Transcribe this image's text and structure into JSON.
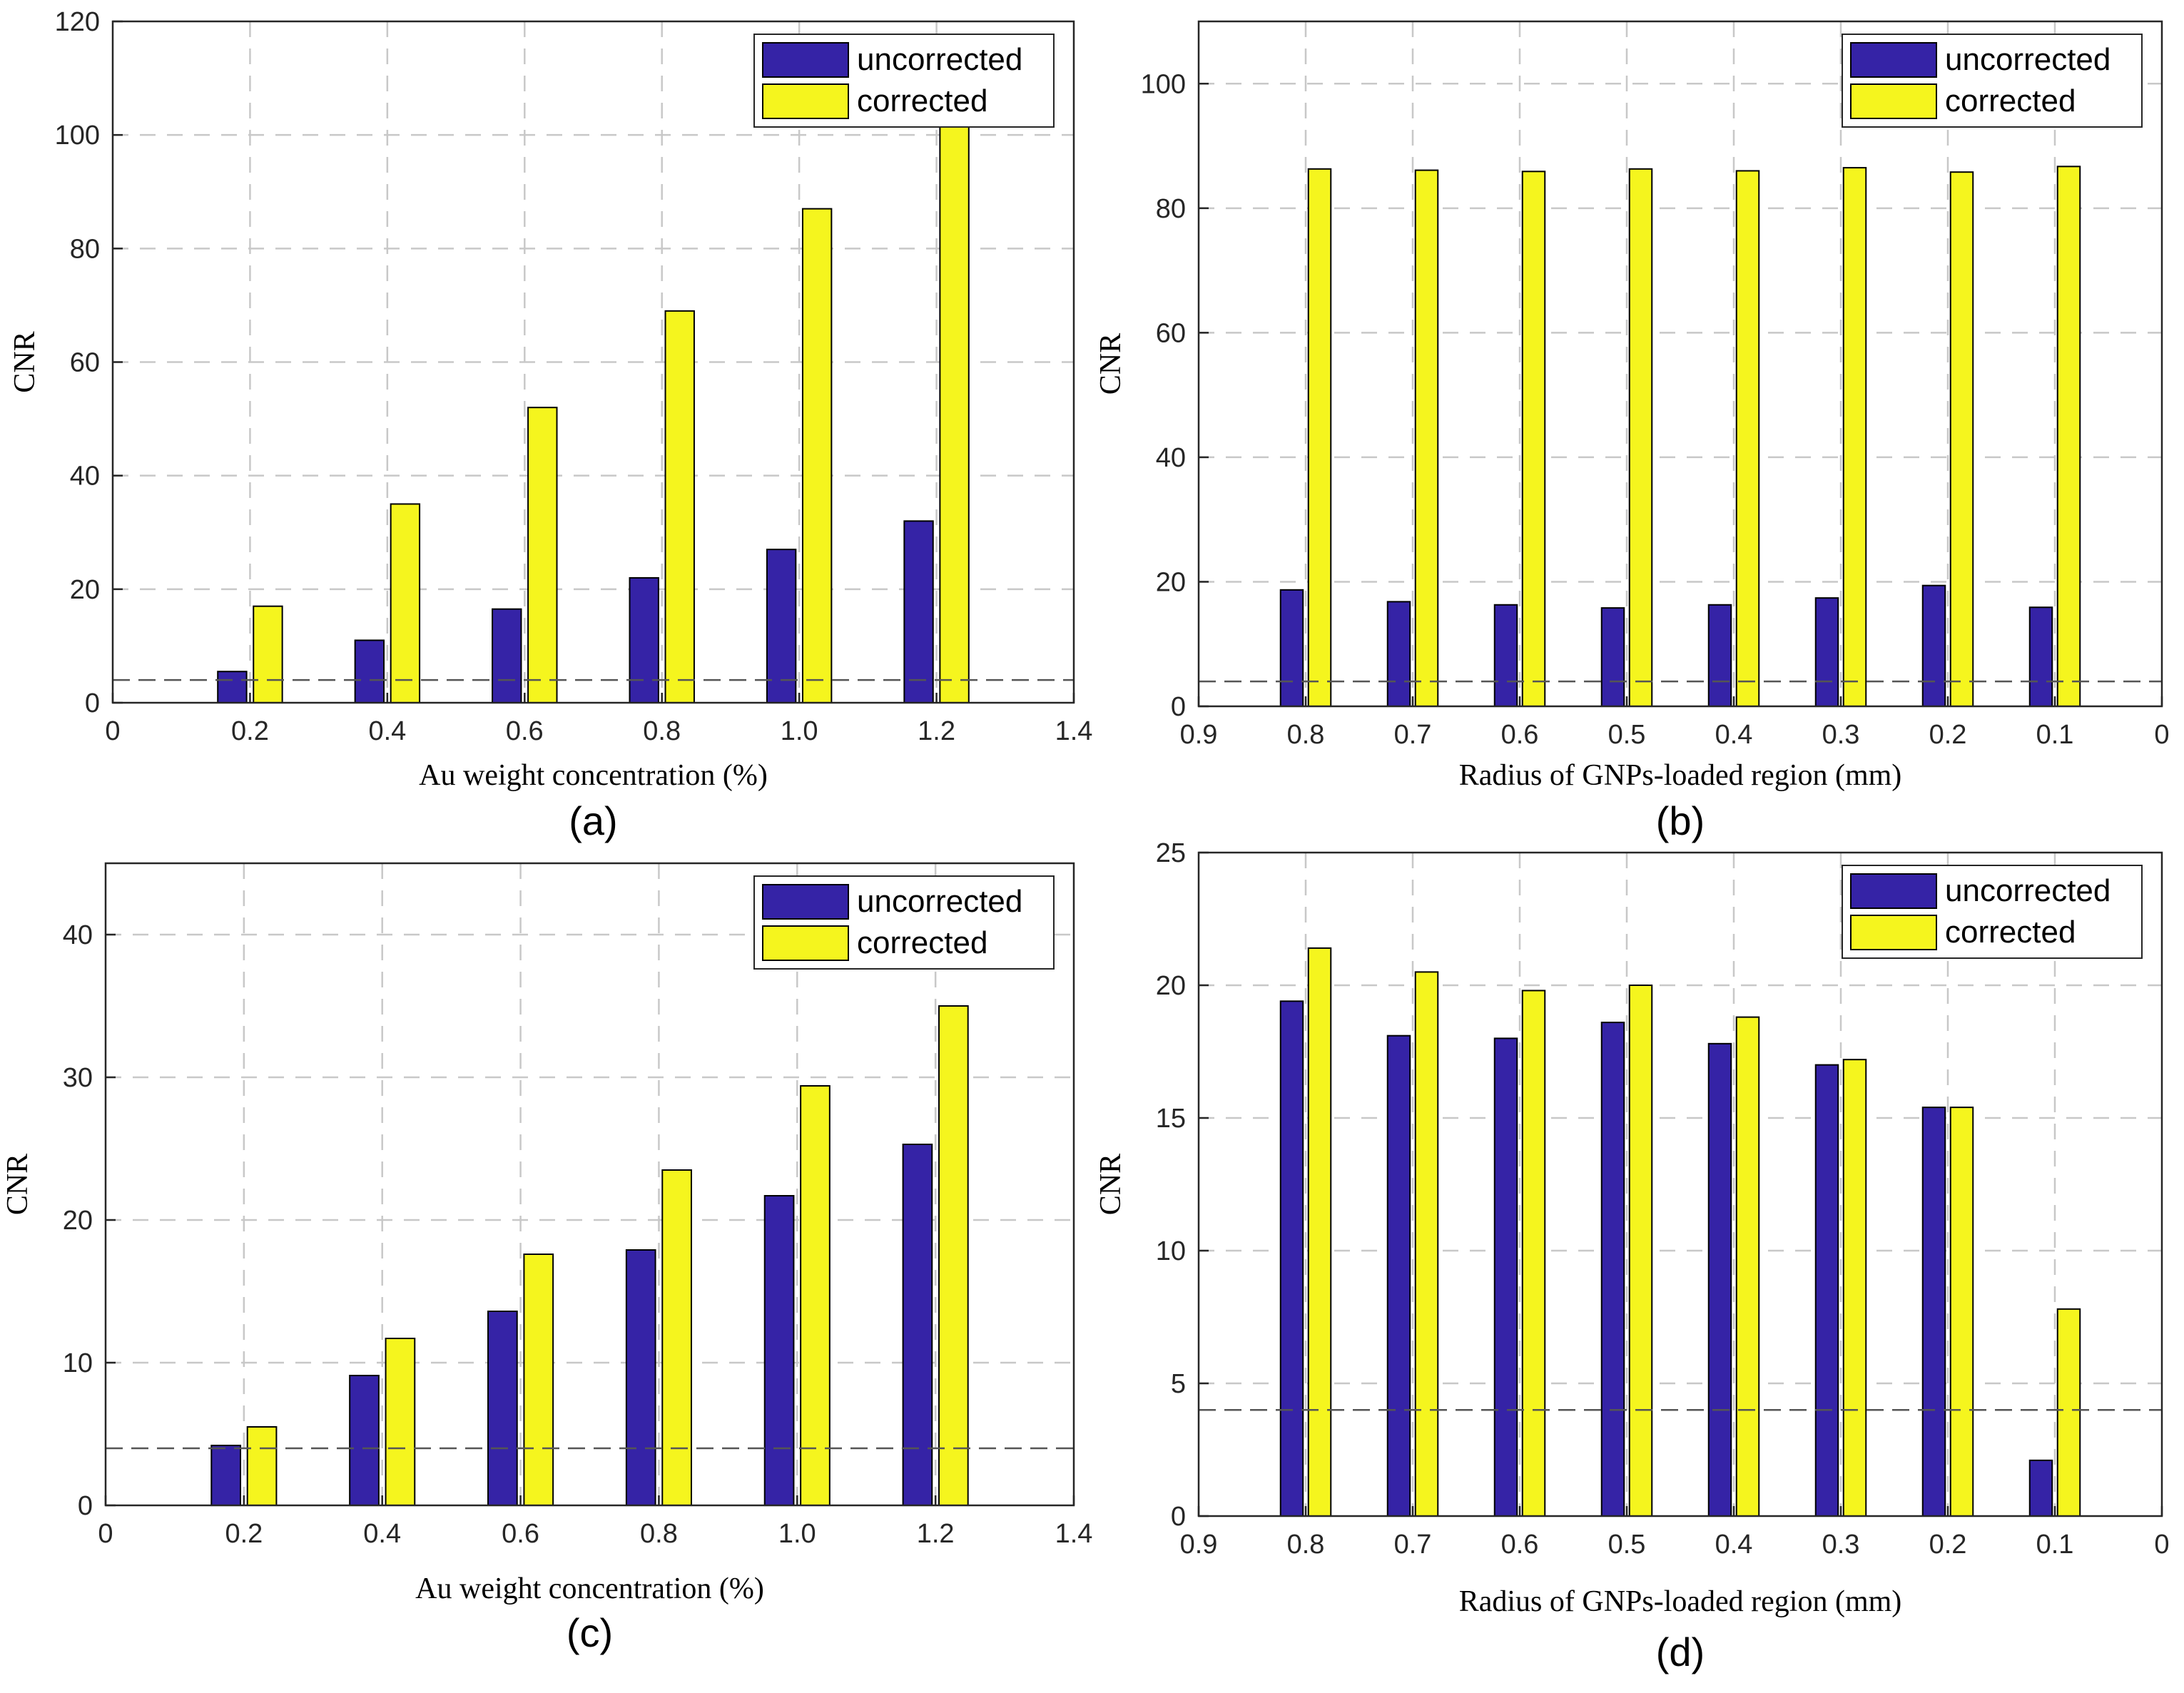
{
  "colors": {
    "uncorrected": "#3523a6",
    "corrected": "#f5f51e",
    "grid": "#c8c8c8",
    "threshold": "#555555"
  },
  "chart_data": [
    {
      "panel": "(a)",
      "type": "bar",
      "xlabel": "Au weight concentration (%)",
      "ylabel": "CNR",
      "xlim": [
        0,
        1.4
      ],
      "ylim": [
        0,
        120
      ],
      "xticks": [
        "0",
        "0.2",
        "0.4",
        "0.6",
        "0.8",
        "1.0",
        "1.2",
        "1.4"
      ],
      "yticks": [
        "0",
        "20",
        "40",
        "60",
        "80",
        "100",
        "120"
      ],
      "x_reversed": false,
      "x": [
        0.2,
        0.4,
        0.6,
        0.8,
        1.0,
        1.2
      ],
      "threshold": 4,
      "legend": "top-right",
      "grid": true,
      "series": [
        {
          "name": "uncorrected",
          "values": [
            5.5,
            11,
            16.5,
            22,
            27,
            32
          ]
        },
        {
          "name": "corrected",
          "values": [
            17,
            35,
            52,
            69,
            87,
            104
          ]
        }
      ]
    },
    {
      "panel": "(b)",
      "type": "bar",
      "xlabel": "Radius of GNPs-loaded region (mm)",
      "ylabel": "CNR",
      "xlim": [
        0,
        0.9
      ],
      "ylim": [
        0,
        110
      ],
      "xticks": [
        "0.9",
        "0.8",
        "0.7",
        "0.6",
        "0.5",
        "0.4",
        "0.3",
        "0.2",
        "0.1",
        "0"
      ],
      "yticks": [
        "0",
        "20",
        "40",
        "60",
        "80",
        "100"
      ],
      "x_reversed": true,
      "x": [
        0.8,
        0.7,
        0.6,
        0.5,
        0.4,
        0.3,
        0.2,
        0.1
      ],
      "threshold": 4,
      "legend": "top-right",
      "grid": true,
      "series": [
        {
          "name": "uncorrected",
          "values": [
            18.7,
            16.8,
            16.3,
            15.8,
            16.3,
            17.4,
            19.4,
            15.9
          ]
        },
        {
          "name": "corrected",
          "values": [
            86.3,
            86.1,
            85.9,
            86.3,
            86.0,
            86.5,
            85.8,
            86.7
          ]
        }
      ]
    },
    {
      "panel": "(c)",
      "type": "bar",
      "xlabel": "Au weight concentration (%)",
      "ylabel": "CNR",
      "xlim": [
        0,
        1.4
      ],
      "ylim": [
        0,
        45
      ],
      "xticks": [
        "0",
        "0.2",
        "0.4",
        "0.6",
        "0.8",
        "1.0",
        "1.2",
        "1.4"
      ],
      "yticks": [
        "0",
        "10",
        "20",
        "30",
        "40"
      ],
      "x_reversed": false,
      "x": [
        0.2,
        0.4,
        0.6,
        0.8,
        1.0,
        1.2
      ],
      "threshold": 4,
      "legend": "top-right",
      "grid": true,
      "series": [
        {
          "name": "uncorrected",
          "values": [
            4.2,
            9.1,
            13.6,
            17.9,
            21.7,
            25.3
          ]
        },
        {
          "name": "corrected",
          "values": [
            5.5,
            11.7,
            17.6,
            23.5,
            29.4,
            35.0
          ]
        }
      ]
    },
    {
      "panel": "(d)",
      "type": "bar",
      "xlabel": "Radius of GNPs-loaded region (mm)",
      "ylabel": "CNR",
      "xlim": [
        0,
        0.9
      ],
      "ylim": [
        0,
        25
      ],
      "xticks": [
        "0.9",
        "0.8",
        "0.7",
        "0.6",
        "0.5",
        "0.4",
        "0.3",
        "0.2",
        "0.1",
        "0"
      ],
      "yticks": [
        "0",
        "5",
        "10",
        "15",
        "20",
        "25"
      ],
      "x_reversed": true,
      "x": [
        0.8,
        0.7,
        0.6,
        0.5,
        0.4,
        0.3,
        0.2,
        0.1
      ],
      "threshold": 4,
      "legend": "top-right",
      "grid": true,
      "series": [
        {
          "name": "uncorrected",
          "values": [
            19.4,
            18.1,
            18.0,
            18.6,
            17.8,
            17.0,
            15.4,
            2.1
          ]
        },
        {
          "name": "corrected",
          "values": [
            21.4,
            20.5,
            19.8,
            20.0,
            18.8,
            17.2,
            15.4,
            7.8
          ]
        }
      ]
    }
  ]
}
